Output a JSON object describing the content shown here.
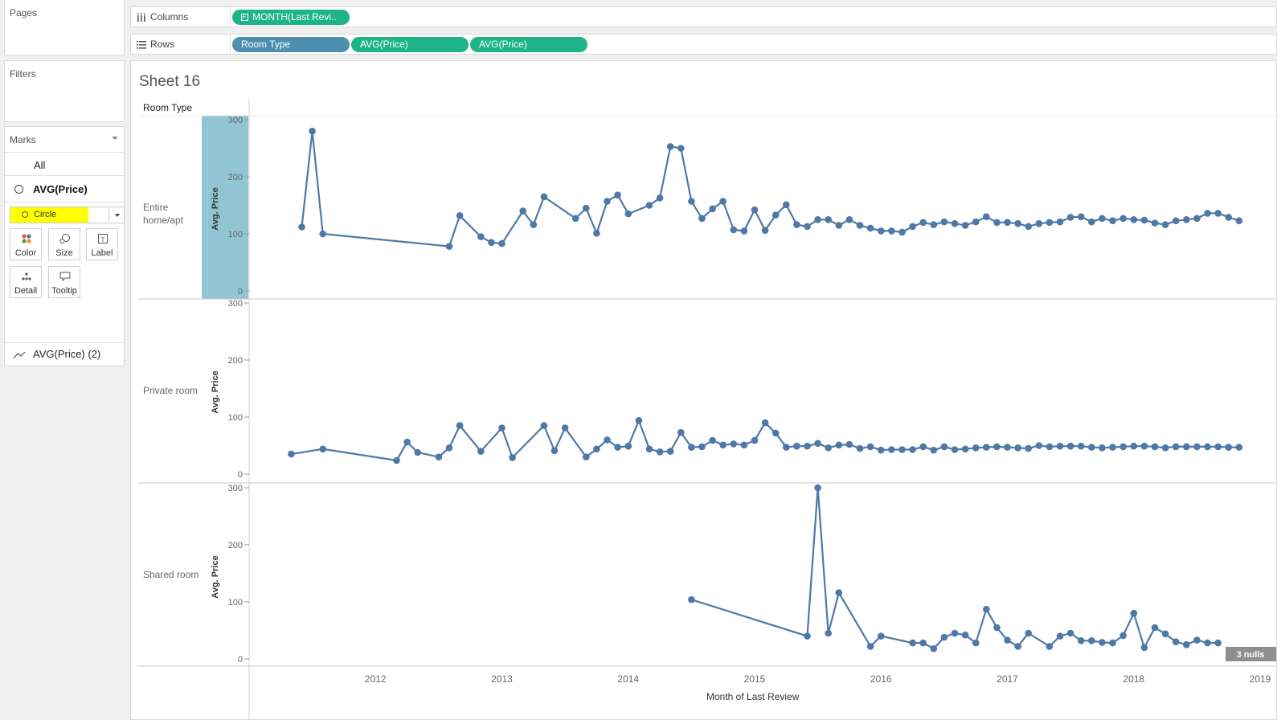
{
  "left_panel": {
    "pages_title": "Pages",
    "filters_title": "Filters",
    "marks": {
      "title": "Marks",
      "all_label": "All",
      "active_measure": "AVG(Price)",
      "mark_type": "Circle",
      "buttons": [
        "Color",
        "Size",
        "Label",
        "Detail",
        "Tooltip"
      ],
      "secondary_measure": "AVG(Price) (2)"
    }
  },
  "shelves": {
    "columns_label": "Columns",
    "rows_label": "Rows",
    "columns_pills": [
      "MONTH(Last Revi.."
    ],
    "rows_pills": [
      "Room Type",
      "AVG(Price)",
      "AVG(Price)"
    ]
  },
  "sheet": {
    "title": "Sheet 16",
    "row_header": "Room Type",
    "x_axis_title": "Month of Last Review",
    "nulls_badge": "3 nulls",
    "y_axis_title": "Avg. Price",
    "y_ticks": [
      "0",
      "100",
      "200",
      "300"
    ],
    "x_ticks": [
      "2012",
      "2013",
      "2014",
      "2015",
      "2016",
      "2017",
      "2018",
      "2019"
    ]
  },
  "chart_data": {
    "type": "line",
    "xlabel": "Month of Last Review",
    "ylabel": "Avg. Price",
    "ylim": [
      0,
      320
    ],
    "xlim": [
      "2011-01",
      "2019-01"
    ],
    "accent_color": "#4e79a7",
    "highlight_color": "#92c5d3",
    "series": [
      {
        "name": "Entire home/apt",
        "points": [
          [
            "2011-06",
            112
          ],
          [
            "2011-07",
            280
          ],
          [
            "2011-08",
            100
          ],
          [
            "2012-08",
            78
          ],
          [
            "2012-09",
            132
          ],
          [
            "2012-11",
            95
          ],
          [
            "2012-12",
            85
          ],
          [
            "2013-01",
            83
          ],
          [
            "2013-03",
            140
          ],
          [
            "2013-04",
            116
          ],
          [
            "2013-05",
            165
          ],
          [
            "2013-08",
            127
          ],
          [
            "2013-09",
            145
          ],
          [
            "2013-10",
            101
          ],
          [
            "2013-11",
            157
          ],
          [
            "2013-12",
            168
          ],
          [
            "2014-01",
            135
          ],
          [
            "2014-03",
            150
          ],
          [
            "2014-04",
            163
          ],
          [
            "2014-05",
            253
          ],
          [
            "2014-06",
            250
          ],
          [
            "2014-07",
            157
          ],
          [
            "2014-08",
            127
          ],
          [
            "2014-09",
            144
          ],
          [
            "2014-10",
            157
          ],
          [
            "2014-11",
            107
          ],
          [
            "2014-12",
            105
          ],
          [
            "2015-01",
            142
          ],
          [
            "2015-02",
            106
          ],
          [
            "2015-03",
            133
          ],
          [
            "2015-04",
            151
          ],
          [
            "2015-05",
            116
          ],
          [
            "2015-06",
            113
          ],
          [
            "2015-07",
            125
          ],
          [
            "2015-08",
            125
          ],
          [
            "2015-09",
            115
          ],
          [
            "2015-10",
            125
          ],
          [
            "2015-11",
            115
          ],
          [
            "2015-12",
            110
          ],
          [
            "2016-01",
            105
          ],
          [
            "2016-02",
            105
          ],
          [
            "2016-03",
            103
          ],
          [
            "2016-04",
            113
          ],
          [
            "2016-05",
            120
          ],
          [
            "2016-06",
            116
          ],
          [
            "2016-07",
            121
          ],
          [
            "2016-08",
            118
          ],
          [
            "2016-09",
            115
          ],
          [
            "2016-10",
            121
          ],
          [
            "2016-11",
            130
          ],
          [
            "2016-12",
            120
          ],
          [
            "2017-01",
            120
          ],
          [
            "2017-02",
            118
          ],
          [
            "2017-03",
            113
          ],
          [
            "2017-04",
            118
          ],
          [
            "2017-05",
            120
          ],
          [
            "2017-06",
            121
          ],
          [
            "2017-07",
            129
          ],
          [
            "2017-08",
            130
          ],
          [
            "2017-09",
            121
          ],
          [
            "2017-10",
            127
          ],
          [
            "2017-11",
            123
          ],
          [
            "2017-12",
            127
          ],
          [
            "2018-01",
            125
          ],
          [
            "2018-02",
            124
          ],
          [
            "2018-03",
            119
          ],
          [
            "2018-04",
            116
          ],
          [
            "2018-05",
            123
          ],
          [
            "2018-06",
            125
          ],
          [
            "2018-07",
            127
          ],
          [
            "2018-08",
            136
          ],
          [
            "2018-09",
            136
          ],
          [
            "2018-10",
            129
          ],
          [
            "2018-11",
            123
          ]
        ]
      },
      {
        "name": "Private room",
        "points": [
          [
            "2011-05",
            35
          ],
          [
            "2011-08",
            44
          ],
          [
            "2012-03",
            24
          ],
          [
            "2012-04",
            56
          ],
          [
            "2012-05",
            38
          ],
          [
            "2012-07",
            30
          ],
          [
            "2012-08",
            46
          ],
          [
            "2012-09",
            85
          ],
          [
            "2012-11",
            40
          ],
          [
            "2013-01",
            81
          ],
          [
            "2013-02",
            29
          ],
          [
            "2013-05",
            85
          ],
          [
            "2013-06",
            41
          ],
          [
            "2013-07",
            81
          ],
          [
            "2013-09",
            30
          ],
          [
            "2013-10",
            44
          ],
          [
            "2013-11",
            60
          ],
          [
            "2013-12",
            47
          ],
          [
            "2014-01",
            49
          ],
          [
            "2014-02",
            94
          ],
          [
            "2014-03",
            44
          ],
          [
            "2014-04",
            39
          ],
          [
            "2014-05",
            40
          ],
          [
            "2014-06",
            73
          ],
          [
            "2014-07",
            47
          ],
          [
            "2014-08",
            48
          ],
          [
            "2014-09",
            59
          ],
          [
            "2014-10",
            51
          ],
          [
            "2014-11",
            53
          ],
          [
            "2014-12",
            51
          ],
          [
            "2015-01",
            59
          ],
          [
            "2015-02",
            90
          ],
          [
            "2015-03",
            72
          ],
          [
            "2015-04",
            47
          ],
          [
            "2015-05",
            49
          ],
          [
            "2015-06",
            49
          ],
          [
            "2015-07",
            54
          ],
          [
            "2015-08",
            46
          ],
          [
            "2015-09",
            51
          ],
          [
            "2015-10",
            52
          ],
          [
            "2015-11",
            45
          ],
          [
            "2015-12",
            48
          ],
          [
            "2016-01",
            42
          ],
          [
            "2016-02",
            43
          ],
          [
            "2016-03",
            43
          ],
          [
            "2016-04",
            43
          ],
          [
            "2016-05",
            48
          ],
          [
            "2016-06",
            42
          ],
          [
            "2016-07",
            48
          ],
          [
            "2016-08",
            43
          ],
          [
            "2016-09",
            44
          ],
          [
            "2016-10",
            46
          ],
          [
            "2016-11",
            47
          ],
          [
            "2016-12",
            48
          ],
          [
            "2017-01",
            47
          ],
          [
            "2017-02",
            46
          ],
          [
            "2017-03",
            45
          ],
          [
            "2017-04",
            50
          ],
          [
            "2017-05",
            48
          ],
          [
            "2017-06",
            49
          ],
          [
            "2017-07",
            49
          ],
          [
            "2017-08",
            49
          ],
          [
            "2017-09",
            47
          ],
          [
            "2017-10",
            46
          ],
          [
            "2017-11",
            47
          ],
          [
            "2017-12",
            48
          ],
          [
            "2018-01",
            49
          ],
          [
            "2018-02",
            49
          ],
          [
            "2018-03",
            48
          ],
          [
            "2018-04",
            46
          ],
          [
            "2018-05",
            48
          ],
          [
            "2018-06",
            48
          ],
          [
            "2018-07",
            48
          ],
          [
            "2018-08",
            48
          ],
          [
            "2018-09",
            48
          ],
          [
            "2018-10",
            47
          ],
          [
            "2018-11",
            47
          ]
        ]
      },
      {
        "name": "Shared room",
        "points": [
          [
            "2014-07",
            104
          ],
          [
            "2015-06",
            40
          ],
          [
            "2015-07",
            300
          ],
          [
            "2015-08",
            45
          ],
          [
            "2015-09",
            116
          ],
          [
            "2015-12",
            22
          ],
          [
            "2016-01",
            40
          ],
          [
            "2016-04",
            28
          ],
          [
            "2016-05",
            28
          ],
          [
            "2016-06",
            18
          ],
          [
            "2016-07",
            38
          ],
          [
            "2016-08",
            45
          ],
          [
            "2016-09",
            42
          ],
          [
            "2016-10",
            28
          ],
          [
            "2016-11",
            87
          ],
          [
            "2016-12",
            55
          ],
          [
            "2017-01",
            33
          ],
          [
            "2017-02",
            22
          ],
          [
            "2017-03",
            45
          ],
          [
            "2017-05",
            22
          ],
          [
            "2017-06",
            40
          ],
          [
            "2017-07",
            45
          ],
          [
            "2017-08",
            32
          ],
          [
            "2017-09",
            32
          ],
          [
            "2017-10",
            29
          ],
          [
            "2017-11",
            28
          ],
          [
            "2017-12",
            41
          ],
          [
            "2018-01",
            80
          ],
          [
            "2018-02",
            20
          ],
          [
            "2018-03",
            55
          ],
          [
            "2018-04",
            44
          ],
          [
            "2018-05",
            30
          ],
          [
            "2018-06",
            25
          ],
          [
            "2018-07",
            33
          ],
          [
            "2018-08",
            28
          ],
          [
            "2018-09",
            28
          ]
        ]
      }
    ]
  }
}
